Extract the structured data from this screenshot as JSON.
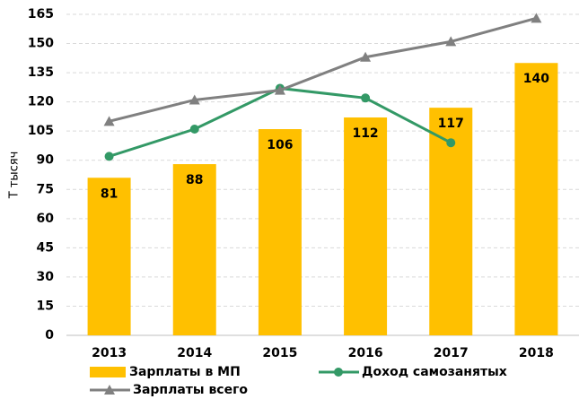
{
  "chart_data": {
    "type": "bar",
    "ylabel": "Т тысяч",
    "categories": [
      "2013",
      "2014",
      "2015",
      "2016",
      "2017",
      "2018"
    ],
    "series": [
      {
        "name": "Зарплаты в МП",
        "type": "bar",
        "color": "#ffc000",
        "values": [
          81,
          88,
          106,
          112,
          117,
          140
        ]
      },
      {
        "name": "Доход самозанятых",
        "type": "line",
        "color": "#339966",
        "marker": "circle",
        "values": [
          92,
          106,
          127,
          122,
          99,
          null
        ]
      },
      {
        "name": "Зарплаты всего",
        "type": "line",
        "color": "#808080",
        "marker": "triangle",
        "values": [
          110,
          121,
          126,
          143,
          151,
          163
        ]
      }
    ],
    "ylim": [
      0,
      165
    ],
    "yticks": [
      0,
      15,
      30,
      45,
      60,
      75,
      90,
      105,
      120,
      135,
      150,
      165
    ],
    "grid": true
  }
}
